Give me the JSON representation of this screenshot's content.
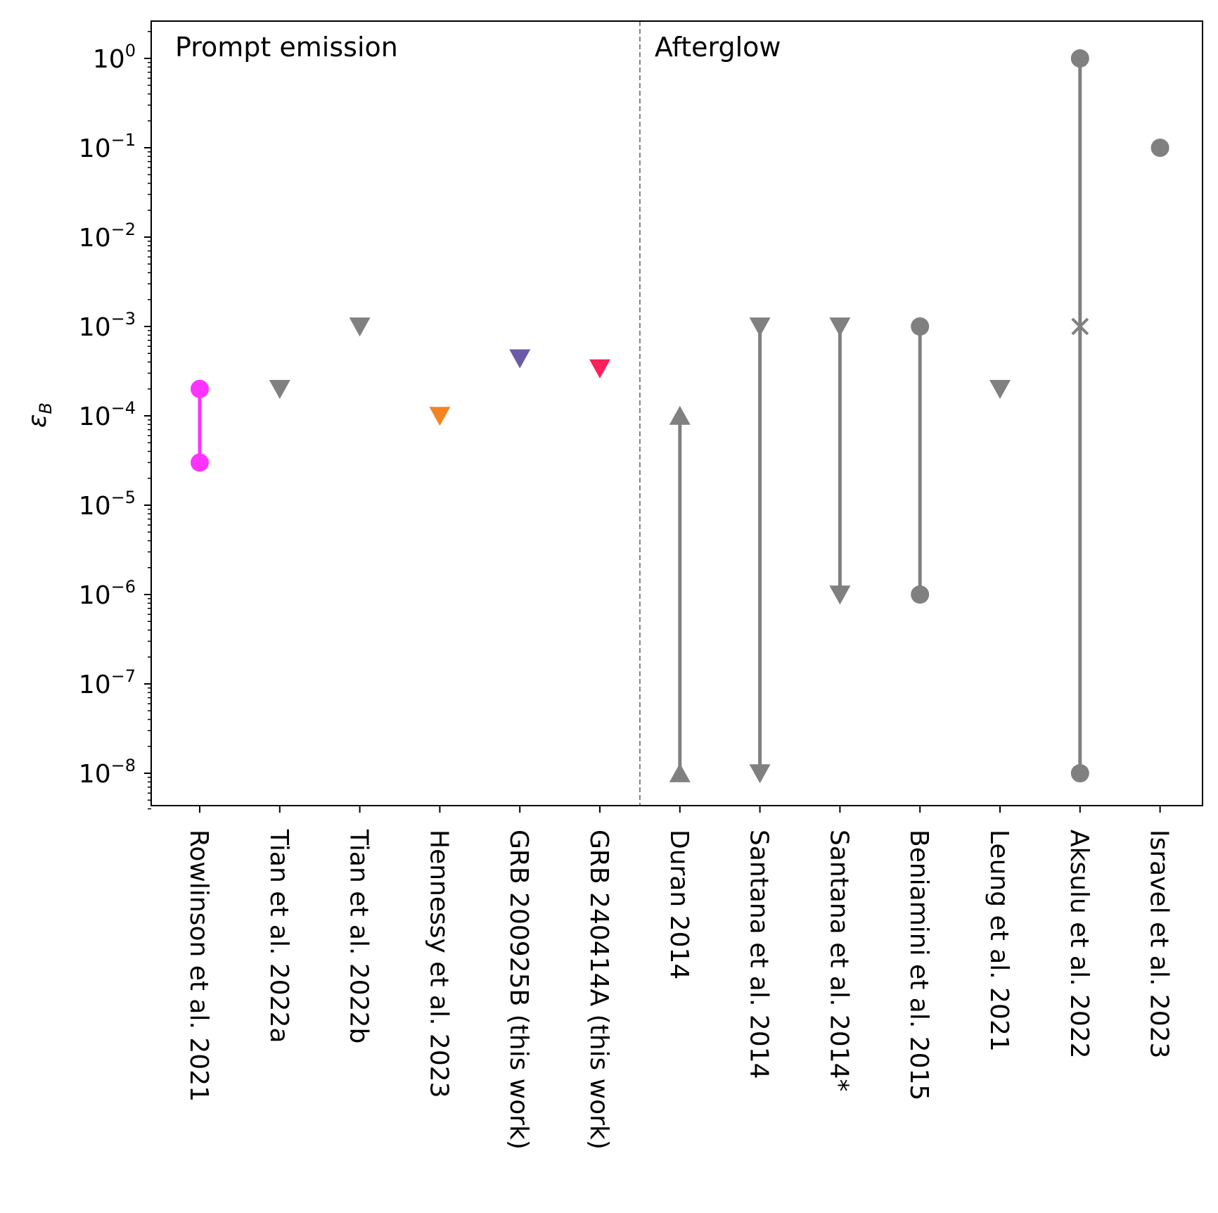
{
  "chart_data": {
    "type": "scatter",
    "ylabel": "ε",
    "ylabel_subscript": "B",
    "yscale": "log",
    "ylim": [
      4e-09,
      2.5
    ],
    "yticks": [
      {
        "base": "10",
        "exp": "0"
      },
      {
        "base": "10",
        "exp": "−1"
      },
      {
        "base": "10",
        "exp": "−2"
      },
      {
        "base": "10",
        "exp": "−3"
      },
      {
        "base": "10",
        "exp": "−4"
      },
      {
        "base": "10",
        "exp": "−5"
      },
      {
        "base": "10",
        "exp": "−6"
      },
      {
        "base": "10",
        "exp": "−7"
      },
      {
        "base": "10",
        "exp": "−8"
      }
    ],
    "regions": [
      {
        "label": "Prompt emission"
      },
      {
        "label": "Afterglow"
      }
    ],
    "categories": [
      "Rowlinson et al. 2021",
      "Tian et al. 2022a",
      "Tian et al. 2022b",
      "Hennessy et al. 2023",
      "GRB 200925B (this work)",
      "GRB 240414A (this work)",
      "Duran 2014",
      "Santana et al. 2014",
      "Santana et al. 2014*",
      "Beniamini et al. 2015",
      "Leung et al. 2021",
      "Aksulu et al. 2022",
      "Isravel et al. 2023"
    ],
    "divider_after_index": 5,
    "points": [
      {
        "cat": 0,
        "kind": "range",
        "low": 3e-05,
        "high": 0.0002,
        "low_marker": "circle",
        "high_marker": "circle",
        "color": "#ff33ff"
      },
      {
        "cat": 1,
        "kind": "single",
        "value": 0.0002,
        "marker": "down-triangle",
        "color": "#808080"
      },
      {
        "cat": 2,
        "kind": "single",
        "value": 0.001,
        "marker": "down-triangle",
        "color": "#808080"
      },
      {
        "cat": 3,
        "kind": "single",
        "value": 0.0001,
        "marker": "down-triangle",
        "color": "#f28522"
      },
      {
        "cat": 4,
        "kind": "single",
        "value": 0.00044,
        "marker": "down-triangle",
        "color": "#6b5ba6"
      },
      {
        "cat": 5,
        "kind": "single",
        "value": 0.00034,
        "marker": "down-triangle",
        "color": "#ff1f5b"
      },
      {
        "cat": 6,
        "kind": "range",
        "low": 1e-08,
        "high": 0.0001,
        "low_marker": "up-triangle",
        "high_marker": "up-triangle",
        "color": "#808080"
      },
      {
        "cat": 7,
        "kind": "range",
        "low": 1e-08,
        "high": 0.001,
        "low_marker": "down-triangle",
        "high_marker": "down-triangle",
        "color": "#808080"
      },
      {
        "cat": 8,
        "kind": "range",
        "low": 1e-06,
        "high": 0.001,
        "low_marker": "down-triangle",
        "high_marker": "down-triangle",
        "color": "#808080"
      },
      {
        "cat": 9,
        "kind": "range",
        "low": 1e-06,
        "high": 0.001,
        "low_marker": "circle",
        "high_marker": "circle",
        "color": "#808080"
      },
      {
        "cat": 10,
        "kind": "single",
        "value": 0.0002,
        "marker": "down-triangle",
        "color": "#808080"
      },
      {
        "cat": 11,
        "kind": "range",
        "low": 1e-08,
        "high": 1,
        "low_marker": "circle",
        "high_marker": "circle",
        "mid": 0.001,
        "mid_marker": "x",
        "color": "#808080"
      },
      {
        "cat": 12,
        "kind": "single",
        "value": 0.1,
        "marker": "circle",
        "color": "#808080"
      }
    ]
  }
}
